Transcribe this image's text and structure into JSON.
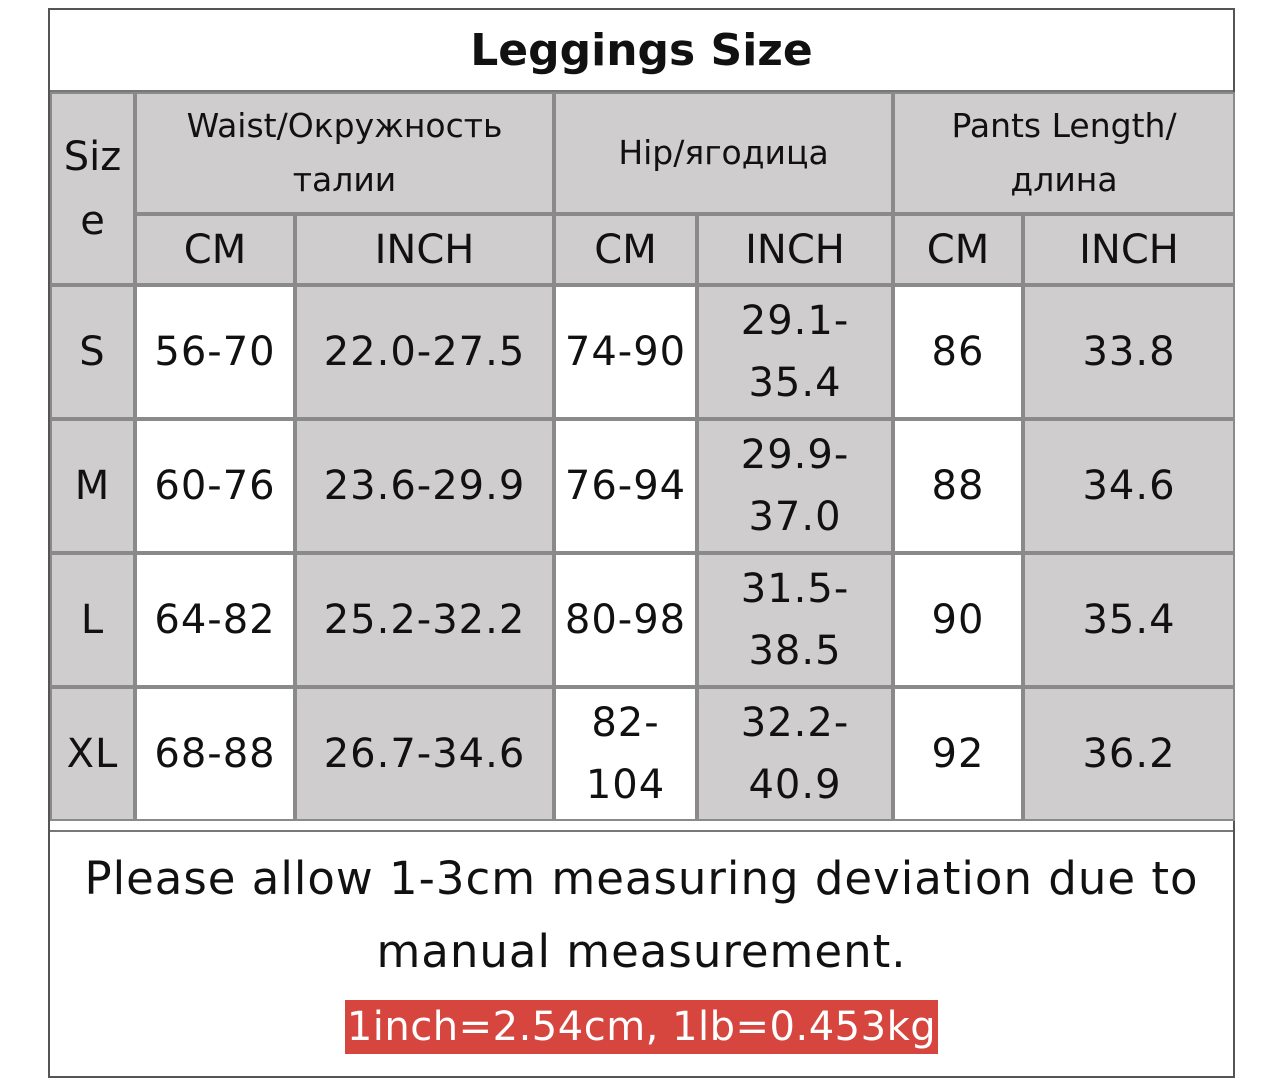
{
  "title": "Leggings Size",
  "headers": {
    "size": "Siz e",
    "waist": "Waist/Окружность талии",
    "hip": "Hip/ягодица",
    "pants_length": "Pants Length/ длина",
    "cm": "CM",
    "inch": "INCH"
  },
  "rows": [
    {
      "size": "S",
      "waist_cm": "56-70",
      "waist_inch": "22.0-27.5",
      "hip_cm": "74-90",
      "hip_inch": "29.1-35.4",
      "len_cm": "86",
      "len_inch": "33.8"
    },
    {
      "size": "M",
      "waist_cm": "60-76",
      "waist_inch": "23.6-29.9",
      "hip_cm": "76-94",
      "hip_inch": "29.9-37.0",
      "len_cm": "88",
      "len_inch": "34.6"
    },
    {
      "size": "L",
      "waist_cm": "64-82",
      "waist_inch": "25.2-32.2",
      "hip_cm": "80-98",
      "hip_inch": "31.5-38.5",
      "len_cm": "90",
      "len_inch": "35.4"
    },
    {
      "size": "XL",
      "waist_cm": "68-88",
      "waist_inch": "26.7-34.6",
      "hip_cm": "82-104",
      "hip_inch": "32.2-40.9",
      "len_cm": "92",
      "len_inch": "36.2"
    }
  ],
  "note": "Please allow 1-3cm measuring deviation due to manual measurement.",
  "conversion": "1inch=2.54cm, 1lb=0.453kg",
  "colors": {
    "header_gray": "#cfcdce",
    "conversion_bg": "#d6463f",
    "conversion_text": "#ffffff"
  }
}
